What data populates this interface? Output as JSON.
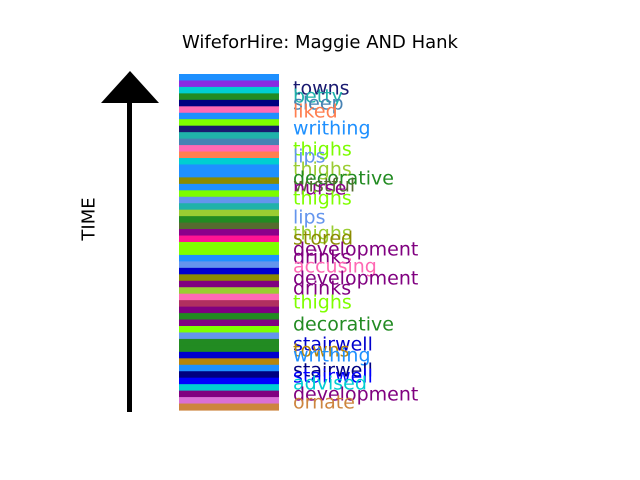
{
  "chart_data": {
    "type": "stripe-timeline",
    "title": "WifeforHire: Maggie AND Hank",
    "ylabel": "TIME",
    "ylim": [
      0,
      1
    ],
    "stripe_colors": [
      "#1e90ff",
      "#8a2be2",
      "#00ced1",
      "#228b22",
      "#000080",
      "#ff69b4",
      "#1e90ff",
      "#7fff00",
      "#191970",
      "#20b2aa",
      "#4682b4",
      "#ff69b4",
      "#ff7f50",
      "#00ced1",
      "#1e90ff",
      "#1e90ff",
      "#8b8b00",
      "#1e90ff",
      "#7cfc00",
      "#6495ed",
      "#20b2aa",
      "#9acd32",
      "#228b22",
      "#556b2f",
      "#8b008b",
      "#ff1493",
      "#7fff00",
      "#7fff00",
      "#1e90ff",
      "#6495ed",
      "#0000cd",
      "#8b8b00",
      "#800080",
      "#9acd32",
      "#ff69b4",
      "#b03060",
      "#800080",
      "#228b22",
      "#800080",
      "#7fff00",
      "#6495ed",
      "#228b22",
      "#228b22",
      "#0000cd",
      "#b8860b",
      "#1e90ff",
      "#000080",
      "#0000ff",
      "#00ced1",
      "#800080",
      "#da70d6",
      "#cd853f"
    ],
    "labels": [
      {
        "text": "towns",
        "y": 0.955,
        "color": "#191970"
      },
      {
        "text": "betty",
        "y": 0.932,
        "color": "#20b2aa"
      },
      {
        "text": "sleep",
        "y": 0.912,
        "color": "#4682b4"
      },
      {
        "text": "liked",
        "y": 0.888,
        "color": "#ff7f50"
      },
      {
        "text": "writhing",
        "y": 0.835,
        "color": "#1e90ff"
      },
      {
        "text": "thighs",
        "y": 0.773,
        "color": "#7cfc00"
      },
      {
        "text": "lips",
        "y": 0.753,
        "color": "#6495ed"
      },
      {
        "text": "thighs",
        "y": 0.713,
        "color": "#9acd32"
      },
      {
        "text": "decorative",
        "y": 0.688,
        "color": "#228b22"
      },
      {
        "text": "wistful",
        "y": 0.667,
        "color": "#556b2f"
      },
      {
        "text": "nurse",
        "y": 0.658,
        "color": "#8b008b"
      },
      {
        "text": "thighs",
        "y": 0.627,
        "color": "#7fff00"
      },
      {
        "text": "lips",
        "y": 0.573,
        "color": "#6495ed"
      },
      {
        "text": "thighs",
        "y": 0.525,
        "color": "#9acd32"
      },
      {
        "text": "stored",
        "y": 0.51,
        "color": "#8b8b00"
      },
      {
        "text": "development",
        "y": 0.475,
        "color": "#800080"
      },
      {
        "text": "drinks",
        "y": 0.453,
        "color": "#800080"
      },
      {
        "text": "accusing",
        "y": 0.427,
        "color": "#ff69b4"
      },
      {
        "text": "development",
        "y": 0.39,
        "color": "#800080"
      },
      {
        "text": "drinks",
        "y": 0.36,
        "color": "#800080"
      },
      {
        "text": "thighs",
        "y": 0.318,
        "color": "#7fff00"
      },
      {
        "text": "decorative",
        "y": 0.253,
        "color": "#228b22"
      },
      {
        "text": "stairwell",
        "y": 0.195,
        "color": "#0000cd"
      },
      {
        "text": "towns",
        "y": 0.175,
        "color": "#b8860b"
      },
      {
        "text": "writhing",
        "y": 0.16,
        "color": "#1e90ff"
      },
      {
        "text": "stairwell",
        "y": 0.115,
        "color": "#000080"
      },
      {
        "text": "stairwell",
        "y": 0.098,
        "color": "#0000ff"
      },
      {
        "text": "advised",
        "y": 0.078,
        "color": "#00ced1"
      },
      {
        "text": "development",
        "y": 0.045,
        "color": "#800080"
      },
      {
        "text": "ornate",
        "y": 0.02,
        "color": "#cd853f"
      }
    ]
  }
}
